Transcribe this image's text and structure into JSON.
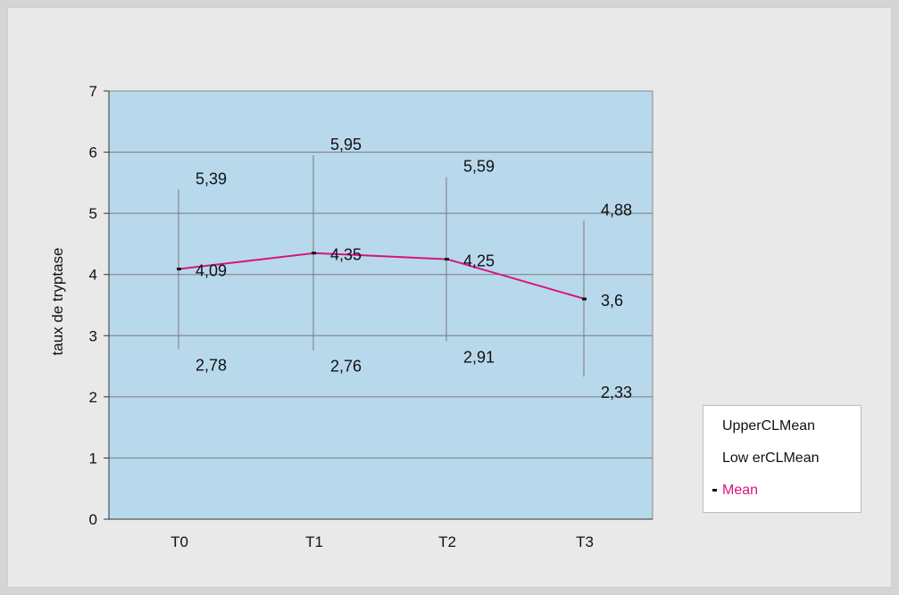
{
  "chart_data": {
    "type": "line",
    "categories": [
      "T0",
      "T1",
      "T2",
      "T3"
    ],
    "ylabel": "taux de tryptase",
    "ylim": [
      0,
      7
    ],
    "yticks": [
      "0",
      "1",
      "2",
      "3",
      "4",
      "5",
      "6",
      "7"
    ],
    "grid": true,
    "legend_position": "right",
    "series": [
      {
        "name": "UpperCLMean",
        "values": [
          5.39,
          5.95,
          5.59,
          4.88
        ],
        "labels": [
          "5,39",
          "5,95",
          "5,59",
          "4,88"
        ],
        "color": "#000000"
      },
      {
        "name": "Low erCLMean",
        "values": [
          2.78,
          2.76,
          2.91,
          2.33
        ],
        "labels": [
          "2,78",
          "2,76",
          "2,91",
          "2,33"
        ],
        "color": "#000000"
      },
      {
        "name": "Mean",
        "values": [
          4.09,
          4.35,
          4.25,
          3.6
        ],
        "labels": [
          "4,09",
          "4,35",
          "4,25",
          "3,6"
        ],
        "color": "#d6147e"
      }
    ],
    "colors": {
      "plot_background": "#b8d8ec",
      "gridline": "#7a7a7a",
      "mean_line": "#d6147e",
      "error_bar": "#7a7a7a"
    }
  }
}
